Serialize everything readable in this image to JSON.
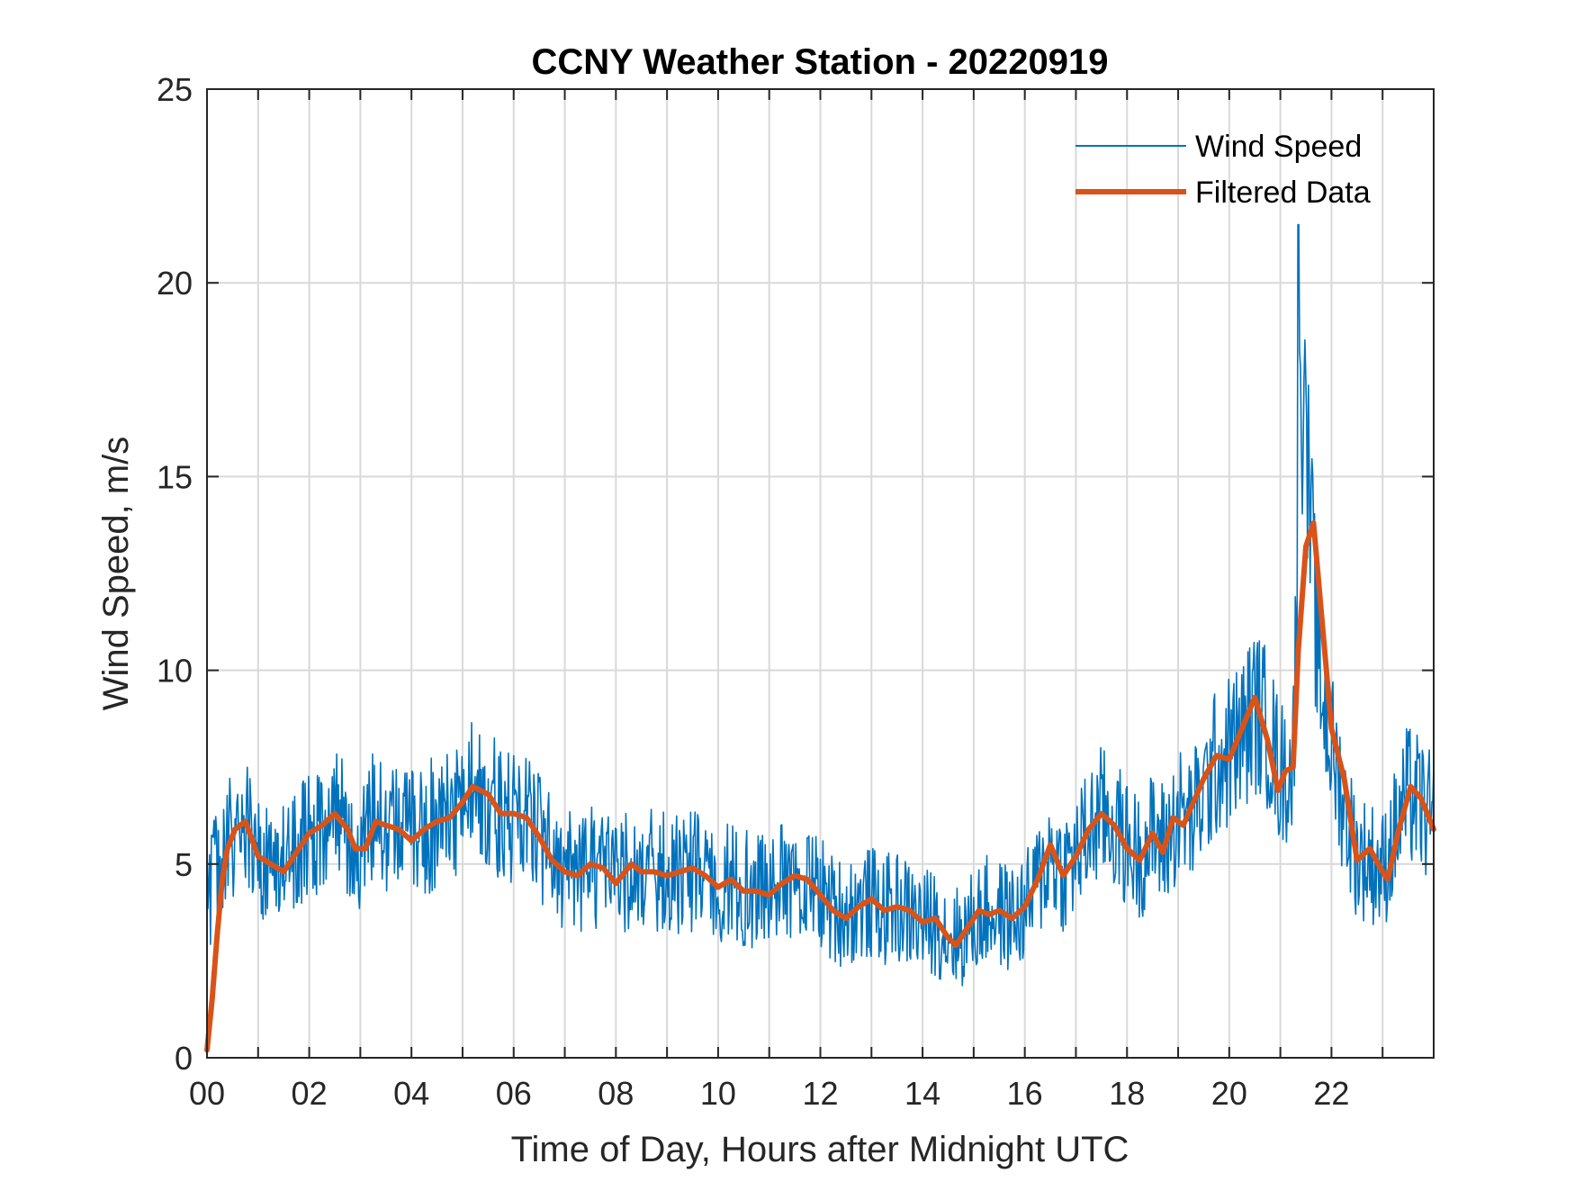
{
  "chart_data": {
    "type": "line",
    "title": "CCNY Weather Station - 20220919",
    "xlabel": "Time of Day, Hours after Midnight UTC",
    "ylabel": "Wind Speed, m/s",
    "xlim": [
      0,
      24
    ],
    "ylim": [
      0,
      25
    ],
    "grid": true,
    "legend_position": "top-right",
    "x_ticks": [
      0,
      2,
      4,
      6,
      8,
      10,
      12,
      14,
      16,
      18,
      20,
      22
    ],
    "x_tick_labels": [
      "00",
      "02",
      "04",
      "06",
      "08",
      "10",
      "12",
      "14",
      "16",
      "18",
      "20",
      "22"
    ],
    "y_ticks": [
      0,
      5,
      10,
      15,
      20,
      25
    ],
    "y_tick_labels": [
      "0",
      "5",
      "10",
      "15",
      "20",
      "25"
    ],
    "series": [
      {
        "name": "Wind Speed",
        "color": "#0072BD",
        "style": "thin-noisy",
        "points": [
          [
            0,
            4.2
          ],
          [
            0.25,
            5.0
          ],
          [
            0.5,
            5.8
          ],
          [
            0.75,
            6.0
          ],
          [
            1.0,
            5.1
          ],
          [
            1.25,
            5.0
          ],
          [
            1.5,
            4.9
          ],
          [
            1.75,
            5.3
          ],
          [
            2.0,
            5.8
          ],
          [
            2.25,
            6.0
          ],
          [
            2.5,
            6.2
          ],
          [
            2.75,
            5.8
          ],
          [
            3.0,
            5.3
          ],
          [
            3.25,
            6.1
          ],
          [
            3.5,
            6.0
          ],
          [
            3.75,
            5.8
          ],
          [
            4.0,
            5.7
          ],
          [
            4.25,
            5.9
          ],
          [
            4.5,
            6.1
          ],
          [
            4.75,
            6.2
          ],
          [
            5.0,
            6.7
          ],
          [
            5.25,
            6.9
          ],
          [
            5.5,
            6.6
          ],
          [
            5.75,
            6.3
          ],
          [
            6.0,
            6.2
          ],
          [
            6.25,
            6.1
          ],
          [
            6.5,
            5.6
          ],
          [
            6.75,
            5.1
          ],
          [
            7.0,
            4.8
          ],
          [
            7.25,
            4.8
          ],
          [
            7.5,
            4.9
          ],
          [
            7.75,
            4.8
          ],
          [
            8.0,
            4.6
          ],
          [
            8.25,
            4.9
          ],
          [
            8.5,
            4.9
          ],
          [
            8.75,
            4.8
          ],
          [
            9.0,
            4.8
          ],
          [
            9.25,
            4.7
          ],
          [
            9.5,
            4.8
          ],
          [
            9.75,
            4.6
          ],
          [
            10.0,
            4.5
          ],
          [
            10.25,
            4.5
          ],
          [
            10.5,
            4.4
          ],
          [
            10.75,
            4.3
          ],
          [
            11.0,
            4.3
          ],
          [
            11.25,
            4.5
          ],
          [
            11.5,
            4.6
          ],
          [
            11.75,
            4.5
          ],
          [
            12.0,
            4.3
          ],
          [
            12.25,
            3.8
          ],
          [
            12.5,
            3.8
          ],
          [
            12.75,
            3.9
          ],
          [
            13.0,
            4.0
          ],
          [
            13.25,
            3.8
          ],
          [
            13.5,
            3.9
          ],
          [
            13.75,
            3.7
          ],
          [
            14.0,
            3.5
          ],
          [
            14.25,
            3.5
          ],
          [
            14.5,
            3.2
          ],
          [
            14.75,
            3.1
          ],
          [
            15.0,
            3.5
          ],
          [
            15.25,
            3.8
          ],
          [
            15.5,
            3.7
          ],
          [
            15.75,
            3.6
          ],
          [
            16.0,
            3.8
          ],
          [
            16.25,
            4.5
          ],
          [
            16.5,
            5.3
          ],
          [
            16.75,
            4.8
          ],
          [
            17.0,
            5.2
          ],
          [
            17.25,
            5.8
          ],
          [
            17.5,
            6.3
          ],
          [
            17.75,
            6.0
          ],
          [
            18.0,
            5.5
          ],
          [
            18.25,
            5.2
          ],
          [
            18.5,
            5.7
          ],
          [
            18.75,
            5.5
          ],
          [
            19.0,
            6.3
          ],
          [
            19.25,
            6.1
          ],
          [
            19.5,
            6.8
          ],
          [
            19.75,
            7.6
          ],
          [
            20.0,
            7.9
          ],
          [
            20.25,
            8.3
          ],
          [
            20.5,
            9.0
          ],
          [
            20.75,
            8.5
          ],
          [
            21.0,
            7.3
          ],
          [
            21.25,
            7.5
          ],
          [
            21.4,
            17.5
          ],
          [
            21.55,
            14.5
          ],
          [
            21.75,
            10.0
          ],
          [
            22.0,
            8.0
          ],
          [
            22.25,
            6.5
          ],
          [
            22.5,
            5.2
          ],
          [
            22.75,
            5.1
          ],
          [
            23.0,
            4.8
          ],
          [
            23.25,
            5.8
          ],
          [
            23.5,
            6.8
          ],
          [
            23.75,
            6.5
          ],
          [
            24.0,
            6.0
          ]
        ]
      },
      {
        "name": "Filtered Data",
        "color": "#D95319",
        "style": "thick-smooth",
        "points": [
          [
            0.0,
            0.2
          ],
          [
            0.1,
            1.5
          ],
          [
            0.2,
            3.2
          ],
          [
            0.3,
            4.6
          ],
          [
            0.4,
            5.4
          ],
          [
            0.55,
            5.9
          ],
          [
            0.75,
            6.1
          ],
          [
            1.0,
            5.2
          ],
          [
            1.25,
            5.0
          ],
          [
            1.5,
            4.8
          ],
          [
            1.75,
            5.3
          ],
          [
            2.0,
            5.8
          ],
          [
            2.25,
            6.0
          ],
          [
            2.5,
            6.3
          ],
          [
            2.75,
            5.9
          ],
          [
            2.9,
            5.4
          ],
          [
            3.1,
            5.4
          ],
          [
            3.3,
            6.1
          ],
          [
            3.5,
            6.0
          ],
          [
            3.75,
            5.9
          ],
          [
            4.0,
            5.6
          ],
          [
            4.25,
            5.9
          ],
          [
            4.5,
            6.1
          ],
          [
            4.75,
            6.2
          ],
          [
            5.0,
            6.6
          ],
          [
            5.2,
            7.0
          ],
          [
            5.5,
            6.8
          ],
          [
            5.75,
            6.3
          ],
          [
            6.0,
            6.3
          ],
          [
            6.25,
            6.2
          ],
          [
            6.5,
            5.7
          ],
          [
            6.75,
            5.1
          ],
          [
            7.0,
            4.8
          ],
          [
            7.25,
            4.7
          ],
          [
            7.5,
            5.0
          ],
          [
            7.75,
            4.9
          ],
          [
            8.0,
            4.5
          ],
          [
            8.3,
            5.0
          ],
          [
            8.5,
            4.8
          ],
          [
            8.75,
            4.8
          ],
          [
            9.0,
            4.7
          ],
          [
            9.25,
            4.8
          ],
          [
            9.5,
            4.9
          ],
          [
            9.75,
            4.7
          ],
          [
            10.0,
            4.4
          ],
          [
            10.25,
            4.6
          ],
          [
            10.5,
            4.3
          ],
          [
            10.75,
            4.3
          ],
          [
            11.0,
            4.2
          ],
          [
            11.25,
            4.5
          ],
          [
            11.5,
            4.7
          ],
          [
            11.75,
            4.6
          ],
          [
            12.0,
            4.2
          ],
          [
            12.25,
            3.8
          ],
          [
            12.5,
            3.6
          ],
          [
            12.75,
            3.9
          ],
          [
            13.0,
            4.1
          ],
          [
            13.25,
            3.8
          ],
          [
            13.5,
            3.9
          ],
          [
            13.75,
            3.8
          ],
          [
            14.0,
            3.5
          ],
          [
            14.25,
            3.6
          ],
          [
            14.5,
            3.1
          ],
          [
            14.65,
            2.9
          ],
          [
            14.9,
            3.4
          ],
          [
            15.1,
            3.8
          ],
          [
            15.3,
            3.7
          ],
          [
            15.5,
            3.8
          ],
          [
            15.75,
            3.6
          ],
          [
            16.0,
            3.9
          ],
          [
            16.25,
            4.6
          ],
          [
            16.5,
            5.5
          ],
          [
            16.75,
            4.7
          ],
          [
            17.0,
            5.2
          ],
          [
            17.25,
            5.9
          ],
          [
            17.5,
            6.3
          ],
          [
            17.75,
            6.0
          ],
          [
            18.0,
            5.4
          ],
          [
            18.25,
            5.1
          ],
          [
            18.5,
            5.8
          ],
          [
            18.7,
            5.3
          ],
          [
            18.9,
            6.2
          ],
          [
            19.1,
            6.0
          ],
          [
            19.3,
            6.6
          ],
          [
            19.5,
            7.2
          ],
          [
            19.75,
            7.8
          ],
          [
            20.0,
            7.7
          ],
          [
            20.25,
            8.5
          ],
          [
            20.5,
            9.3
          ],
          [
            20.75,
            8.2
          ],
          [
            20.95,
            6.9
          ],
          [
            21.1,
            7.4
          ],
          [
            21.25,
            7.5
          ],
          [
            21.35,
            10.5
          ],
          [
            21.5,
            13.2
          ],
          [
            21.65,
            13.8
          ],
          [
            21.8,
            11.5
          ],
          [
            22.0,
            8.5
          ],
          [
            22.25,
            7.2
          ],
          [
            22.5,
            5.1
          ],
          [
            22.75,
            5.4
          ],
          [
            23.0,
            4.8
          ],
          [
            23.1,
            4.6
          ],
          [
            23.3,
            5.8
          ],
          [
            23.55,
            7.0
          ],
          [
            23.75,
            6.7
          ],
          [
            24.0,
            5.9
          ]
        ]
      }
    ]
  }
}
